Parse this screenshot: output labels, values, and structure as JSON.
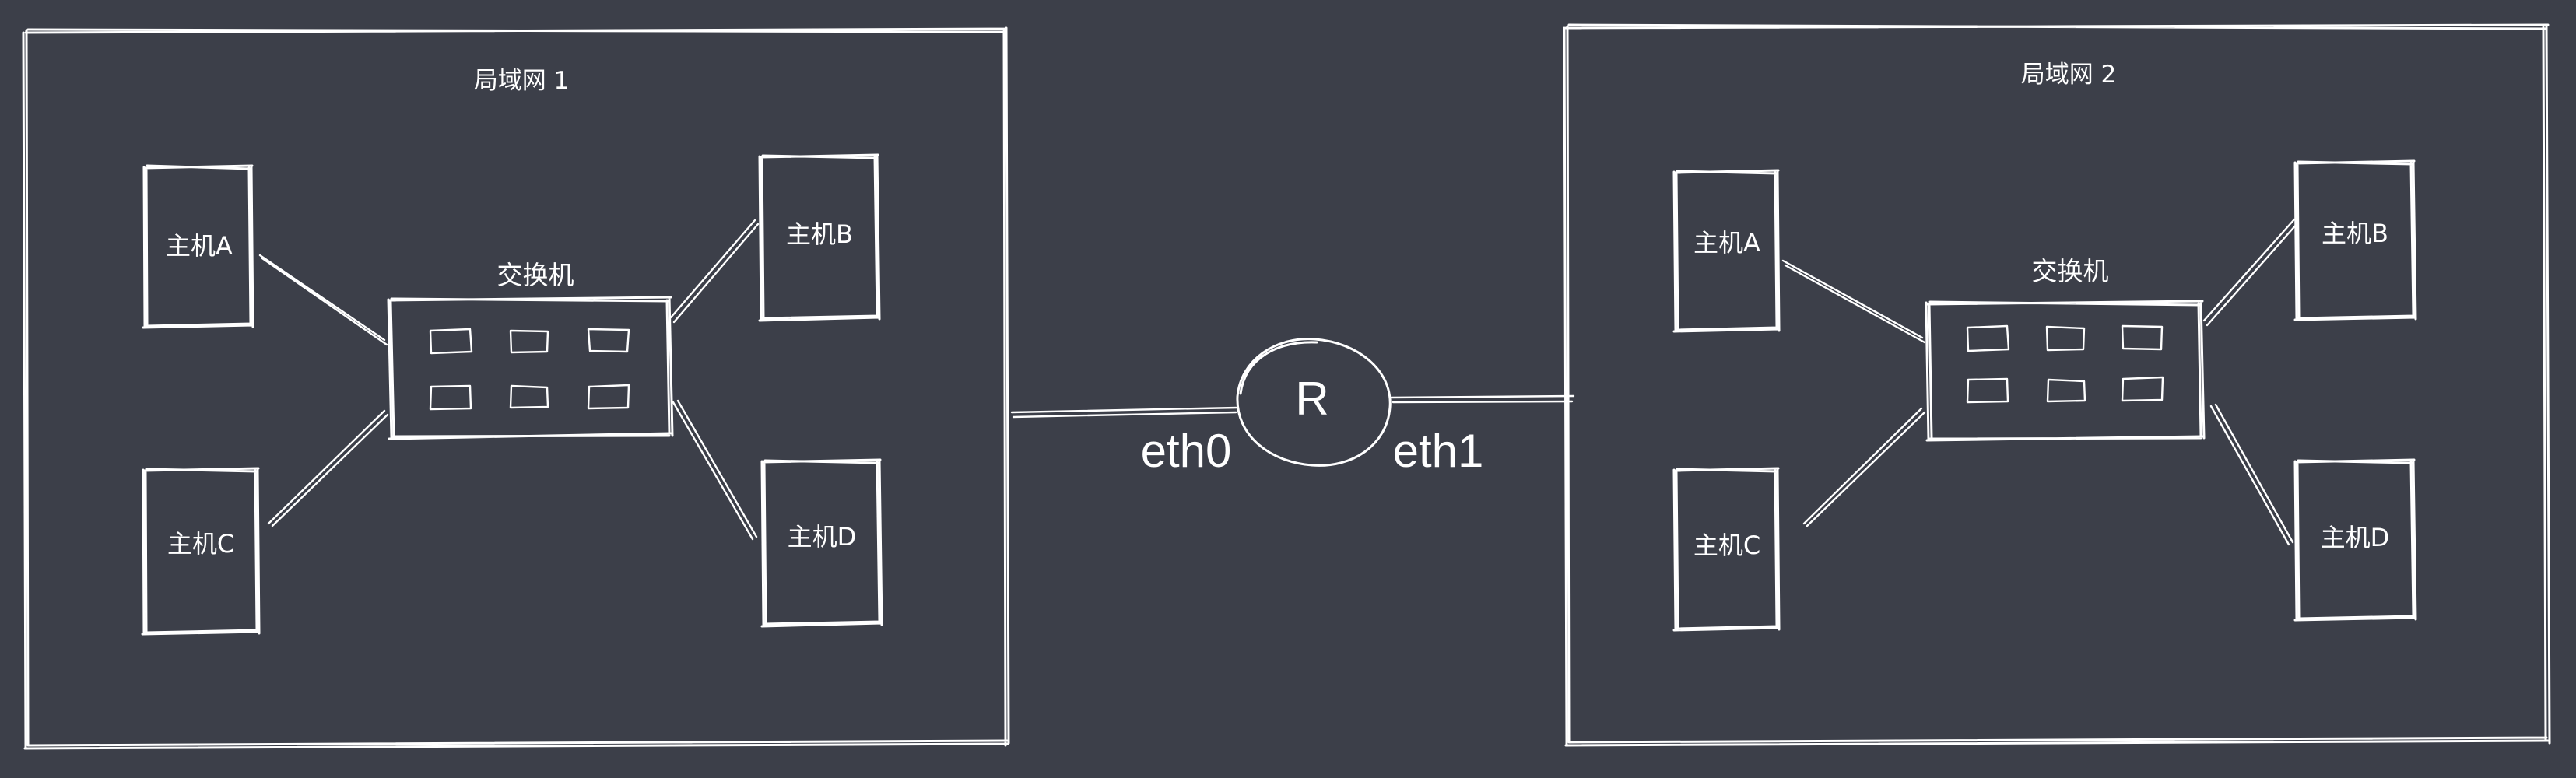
{
  "lan1": {
    "title": "局域网 1",
    "switch_label": "交换机",
    "hosts": {
      "a": "主机A",
      "b": "主机B",
      "c": "主机C",
      "d": "主机D"
    }
  },
  "lan2": {
    "title": "局域网 2",
    "switch_label": "交换机",
    "hosts": {
      "a": "主机A",
      "b": "主机B",
      "c": "主机C",
      "d": "主机D"
    }
  },
  "router": {
    "label": "R",
    "port_left": "eth0",
    "port_right": "eth1"
  },
  "colors": {
    "background": "#3c3f49",
    "stroke": "#ffffff"
  }
}
